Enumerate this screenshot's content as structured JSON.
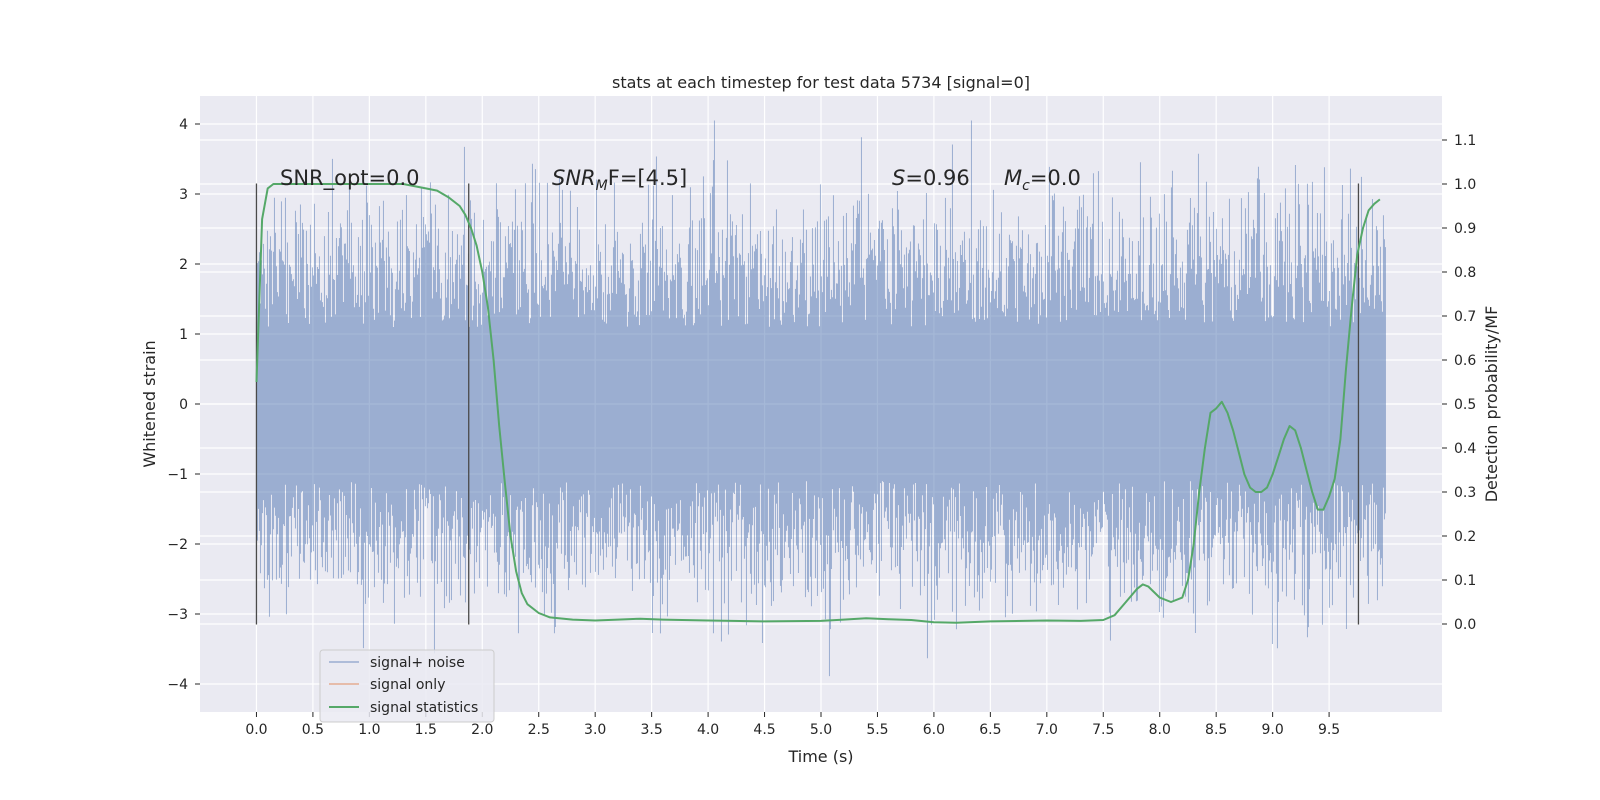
{
  "chart_data": {
    "type": "line",
    "title": "stats at each timestep for test data 5734 [signal=0]",
    "xlabel": "Time (s)",
    "ylabel": "Whitened strain",
    "y2label": "Detection probability/MF",
    "xlim": [
      -0.5,
      10.5
    ],
    "ylim": [
      -4.4,
      4.4
    ],
    "y2lim": [
      -0.2,
      1.2
    ],
    "x_ticks": [
      0.0,
      0.5,
      1.0,
      1.5,
      2.0,
      2.5,
      3.0,
      3.5,
      4.0,
      4.5,
      5.0,
      5.5,
      6.0,
      6.5,
      7.0,
      7.5,
      8.0,
      8.5,
      9.0,
      9.5
    ],
    "x_tick_labels": [
      "0.0",
      "0.5",
      "1.0",
      "1.5",
      "2.0",
      "2.5",
      "3.0",
      "3.5",
      "4.0",
      "4.5",
      "5.0",
      "5.5",
      "6.0",
      "6.5",
      "7.0",
      "7.5",
      "8.0",
      "8.5",
      "9.0",
      "9.5"
    ],
    "y_ticks": [
      -4,
      -3,
      -2,
      -1,
      0,
      1,
      2,
      3,
      4
    ],
    "y_tick_labels": [
      "−4",
      "−3",
      "−2",
      "−1",
      "0",
      "1",
      "2",
      "3",
      "4"
    ],
    "y2_ticks": [
      0.0,
      0.1,
      0.2,
      0.3,
      0.4,
      0.5,
      0.6,
      0.7,
      0.8,
      0.9,
      1.0,
      1.1
    ],
    "y2_tick_labels": [
      "0.0",
      "0.1",
      "0.2",
      "0.3",
      "0.4",
      "0.5",
      "0.6",
      "0.7",
      "0.8",
      "0.9",
      "1.0",
      "1.1"
    ],
    "grid": true,
    "legend_placement": "lower-left",
    "series": [
      {
        "name": "signal+ noise",
        "color": "#4c72b0",
        "axis": "left",
        "style": "dense-noise",
        "x_range": [
          0.0,
          10.0
        ],
        "amplitude_sigma": 1.0,
        "peak_max": 4.05,
        "peak_min": -4.05
      },
      {
        "name": "signal only",
        "color": "#dd8452",
        "axis": "left",
        "x": [],
        "y": []
      },
      {
        "name": "signal statistics",
        "color": "#55a868",
        "axis": "right",
        "x": [
          0.0,
          0.05,
          0.1,
          0.15,
          0.2,
          0.3,
          0.5,
          1.0,
          1.3,
          1.5,
          1.6,
          1.7,
          1.8,
          1.85,
          1.9,
          1.95,
          2.0,
          2.05,
          2.1,
          2.15,
          2.2,
          2.25,
          2.3,
          2.35,
          2.4,
          2.5,
          2.6,
          2.8,
          3.0,
          3.2,
          3.4,
          3.6,
          4.0,
          4.5,
          5.0,
          5.2,
          5.4,
          5.6,
          5.8,
          6.0,
          6.2,
          6.5,
          7.0,
          7.3,
          7.5,
          7.6,
          7.7,
          7.8,
          7.85,
          7.9,
          8.0,
          8.1,
          8.2,
          8.25,
          8.3,
          8.35,
          8.4,
          8.45,
          8.5,
          8.55,
          8.6,
          8.65,
          8.7,
          8.75,
          8.8,
          8.85,
          8.9,
          8.95,
          9.0,
          9.05,
          9.1,
          9.15,
          9.2,
          9.25,
          9.3,
          9.35,
          9.4,
          9.45,
          9.5,
          9.55,
          9.6,
          9.65,
          9.7,
          9.75,
          9.8,
          9.85,
          9.9,
          9.95
        ],
        "y": [
          0.55,
          0.92,
          0.99,
          1.0,
          1.0,
          1.0,
          1.0,
          1.0,
          1.0,
          0.99,
          0.985,
          0.97,
          0.95,
          0.93,
          0.9,
          0.86,
          0.8,
          0.72,
          0.6,
          0.45,
          0.32,
          0.2,
          0.12,
          0.07,
          0.045,
          0.025,
          0.015,
          0.01,
          0.008,
          0.01,
          0.012,
          0.01,
          0.008,
          0.006,
          0.007,
          0.01,
          0.013,
          0.011,
          0.009,
          0.004,
          0.003,
          0.006,
          0.008,
          0.007,
          0.009,
          0.02,
          0.05,
          0.08,
          0.09,
          0.085,
          0.06,
          0.05,
          0.06,
          0.1,
          0.18,
          0.3,
          0.4,
          0.48,
          0.49,
          0.505,
          0.48,
          0.44,
          0.39,
          0.34,
          0.31,
          0.3,
          0.3,
          0.31,
          0.34,
          0.38,
          0.42,
          0.45,
          0.44,
          0.4,
          0.35,
          0.3,
          0.26,
          0.26,
          0.29,
          0.33,
          0.42,
          0.58,
          0.72,
          0.84,
          0.9,
          0.94,
          0.955,
          0.965
        ]
      }
    ],
    "vertical_markers": [
      {
        "x": 0.0,
        "y_range": [
          -3.15,
          3.15
        ]
      },
      {
        "x": 1.88,
        "y_range": [
          -3.15,
          3.15
        ]
      },
      {
        "x": 9.76,
        "y_range": [
          -3.15,
          3.15
        ]
      }
    ],
    "annotations": [
      {
        "text": "SNR_opt=0.0",
        "x": 0.2,
        "y": 3.2
      },
      {
        "text_main": "SNR",
        "text_sub": "M",
        "text_tail": "F=[4.5]",
        "x": 2.6,
        "y": 3.2
      },
      {
        "text_main": "S",
        "text_tail": "=0.96",
        "x": 5.6,
        "y": 3.2
      },
      {
        "text_main": "M",
        "text_sub": "c",
        "text_tail": "=0.0",
        "x": 6.6,
        "y": 3.2
      }
    ]
  }
}
